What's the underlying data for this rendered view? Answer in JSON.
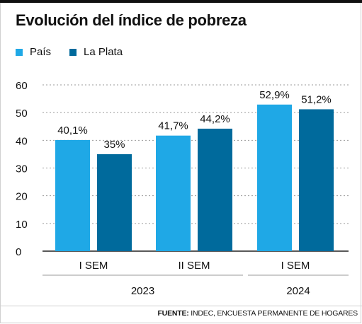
{
  "title": "Evolución del índice de pobreza",
  "legend": [
    {
      "label": "País",
      "color": "#1fa8e6"
    },
    {
      "label": "La Plata",
      "color": "#006a9c"
    }
  ],
  "chart_data": {
    "type": "bar",
    "title": "Evolución del índice de pobreza",
    "categories": [
      "I SEM",
      "II SEM",
      "I SEM"
    ],
    "groups": [
      {
        "label": "2023",
        "categories": [
          0,
          1
        ]
      },
      {
        "label": "2024",
        "categories": [
          2
        ]
      }
    ],
    "series": [
      {
        "name": "País",
        "color": "#1fa8e6",
        "values": [
          40.1,
          41.7,
          52.9
        ],
        "labels": [
          "40,1%",
          "41,7%",
          "52,9%"
        ]
      },
      {
        "name": "La Plata",
        "color": "#006a9c",
        "values": [
          35,
          44.2,
          51.2
        ],
        "labels": [
          "35%",
          "44,2%",
          "51,2%"
        ]
      }
    ],
    "yticks": [
      "0",
      "10",
      "20",
      "30",
      "40",
      "50",
      "60"
    ],
    "ylim": [
      0,
      60
    ],
    "grid": true,
    "legend_position": "top-left"
  },
  "source": {
    "label": "FUENTE:",
    "text": " INDEC, ENCUESTA PERMANENTE DE HOGARES"
  }
}
